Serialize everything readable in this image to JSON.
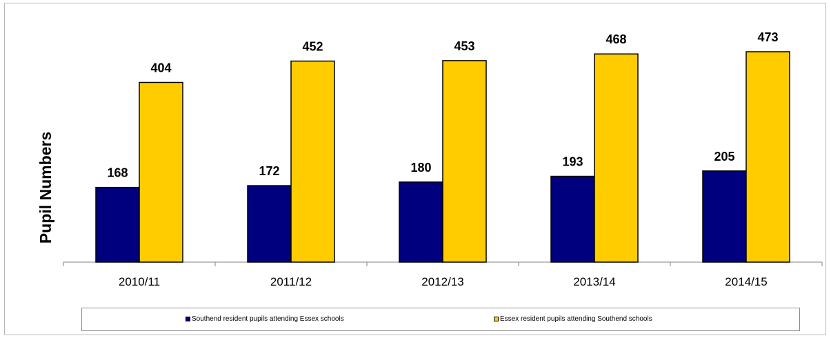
{
  "chart_data": {
    "type": "bar",
    "title": "",
    "xlabel": "",
    "ylabel": "Pupil Numbers",
    "ylim": [
      0,
      500
    ],
    "categories": [
      "2010/11",
      "2011/12",
      "2012/13",
      "2013/14",
      "2014/15"
    ],
    "series": [
      {
        "name": "Southend resident pupils attending Essex schools",
        "color": "#00007f",
        "values": [
          168,
          172,
          180,
          193,
          205
        ]
      },
      {
        "name": "Essex resident pupils attending Southend schools",
        "color": "#ffcc00",
        "values": [
          404,
          452,
          453,
          468,
          473
        ]
      }
    ],
    "value_labels": [
      [
        "168",
        "172",
        "180",
        "193",
        "205"
      ],
      [
        "404",
        "452",
        "453",
        "468",
        "473"
      ]
    ],
    "legend_position": "bottom",
    "grid": false
  }
}
